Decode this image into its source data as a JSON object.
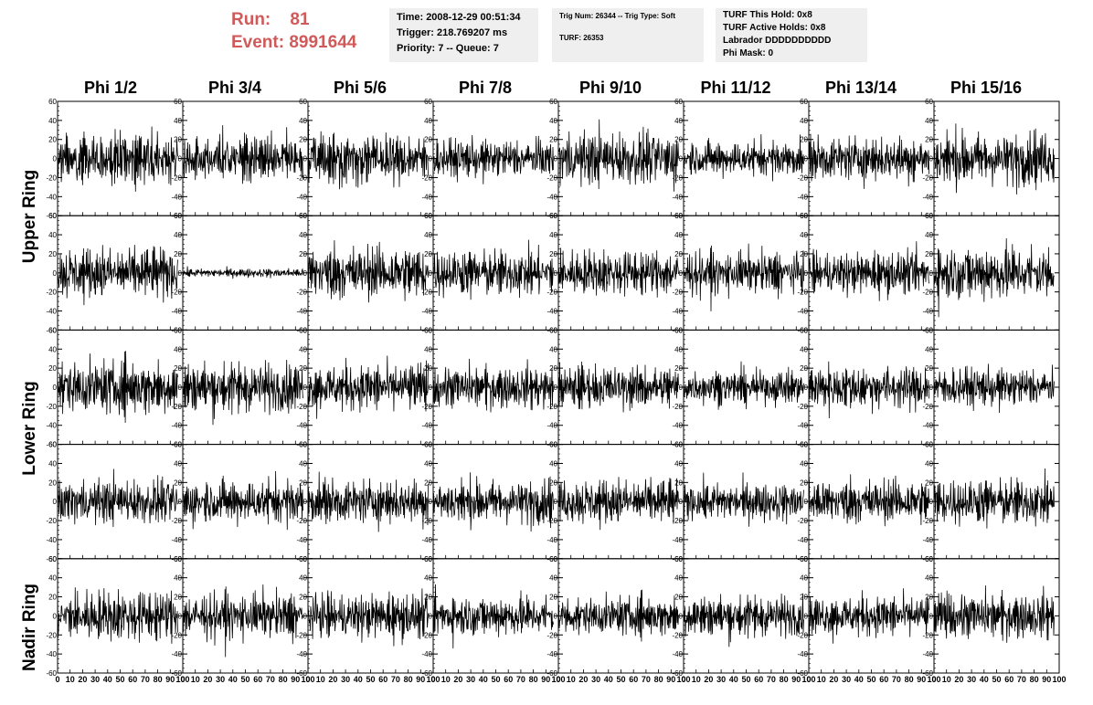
{
  "header": {
    "run_label": "Run:",
    "run_value": "81",
    "event_label": "Event:",
    "event_value": "8991644",
    "time": "Time: 2008-12-29 00:51:34",
    "trigger": "Trigger: 218.769207 ms",
    "priority": "Priority: 7 -- Queue: 7",
    "trig_num": "Trig Num: 26344 -- Trig Type: Soft",
    "turf": "TURF: 26353",
    "turf_this_hold": "TURF This Hold: 0x8",
    "turf_active_holds": "TURF Active Holds: 0x8",
    "labrador": "Labrador DDDDDDDDDD",
    "phi_mask": "Phi Mask: 0"
  },
  "columns": [
    "Phi 1/2",
    "Phi 3/4",
    "Phi 5/6",
    "Phi 7/8",
    "Phi 9/10",
    "Phi 11/12",
    "Phi 13/14",
    "Phi 15/16"
  ],
  "rows": [
    "Upper Ring",
    "Lower Ring",
    "Nadir Ring"
  ],
  "chart_data": {
    "type": "line",
    "grid_rows": 5,
    "grid_cols": 8,
    "x_range": [
      0,
      100
    ],
    "y_range": [
      -60,
      60
    ],
    "x_ticks": [
      0,
      10,
      20,
      30,
      40,
      50,
      60,
      70,
      80,
      90,
      100
    ],
    "x_tick_labels": [
      "0",
      "10",
      "20",
      "30",
      "40",
      "50",
      "60",
      "70",
      "80",
      "90",
      "100"
    ],
    "y_ticks": [
      -60,
      -40,
      -20,
      0,
      20,
      40,
      60
    ],
    "y_tick_labels": [
      "-60",
      "-40",
      "-20",
      "0",
      "20",
      "40",
      "60"
    ],
    "samples_per_trace": 260,
    "x_end": 96,
    "panel_amplitudes": [
      [
        17,
        16,
        17,
        13,
        18,
        12,
        15,
        18
      ],
      [
        17,
        3,
        18,
        16,
        15,
        14,
        14,
        19
      ],
      [
        18,
        17,
        16,
        14,
        14,
        11,
        15,
        13
      ],
      [
        15,
        15,
        15,
        15,
        15,
        13,
        15,
        16
      ],
      [
        17,
        15,
        15,
        14,
        13,
        14,
        14,
        15
      ]
    ],
    "grid": false,
    "line_color": "#000000"
  }
}
